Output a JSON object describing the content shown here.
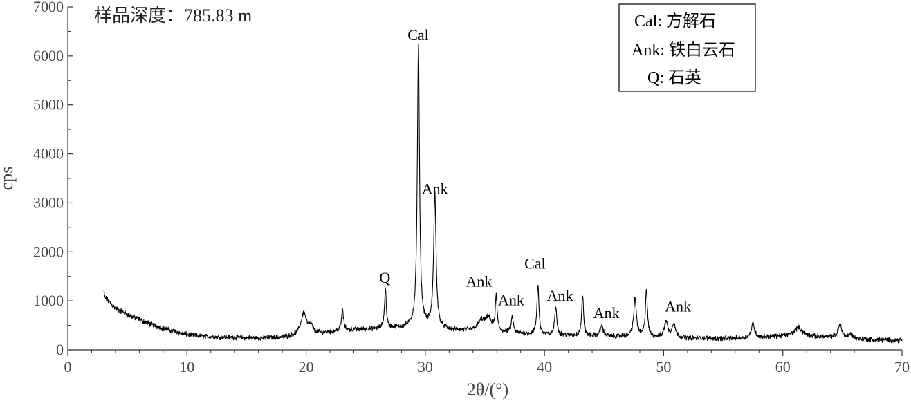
{
  "chart_data": {
    "type": "line",
    "sample_label": "样品深度：785.83 m",
    "xlabel": "2θ/(°)",
    "ylabel": "cps",
    "xlim": [
      0,
      70
    ],
    "ylim": [
      0,
      7000
    ],
    "x_ticks": [
      "0",
      "10",
      "20",
      "30",
      "40",
      "50",
      "60",
      "70"
    ],
    "y_ticks": [
      "0",
      "1000",
      "2000",
      "3000",
      "4000",
      "5000",
      "6000",
      "7000"
    ],
    "grid": false,
    "legend": {
      "position": "top-right",
      "entries": [
        "Cal: 方解石",
        "Ank: 铁白云石",
        "Q: 石英"
      ]
    },
    "series": [
      {
        "baseline": [
          [
            3.0,
            1100
          ],
          [
            4,
            850
          ],
          [
            5,
            720
          ],
          [
            6,
            620
          ],
          [
            7,
            520
          ],
          [
            8,
            440
          ],
          [
            9,
            370
          ],
          [
            10,
            310
          ],
          [
            11,
            280
          ],
          [
            12,
            265
          ],
          [
            14,
            250
          ],
          [
            16,
            240
          ],
          [
            18,
            250
          ],
          [
            19,
            280
          ],
          [
            21,
            330
          ],
          [
            23,
            390
          ],
          [
            25,
            420
          ],
          [
            26,
            430
          ],
          [
            28,
            450
          ],
          [
            30,
            470
          ],
          [
            32,
            400
          ],
          [
            34,
            380
          ],
          [
            36,
            360
          ],
          [
            38,
            330
          ],
          [
            40,
            300
          ],
          [
            42,
            290
          ],
          [
            44,
            280
          ],
          [
            46,
            270
          ],
          [
            48,
            265
          ],
          [
            50,
            255
          ],
          [
            52,
            240
          ],
          [
            55,
            230
          ],
          [
            58,
            250
          ],
          [
            60,
            280
          ],
          [
            62,
            270
          ],
          [
            64,
            250
          ],
          [
            66,
            220
          ],
          [
            68,
            200
          ],
          [
            70,
            200
          ]
        ],
        "peaks": [
          {
            "x": 19.8,
            "height": 450,
            "width": 0.28
          },
          {
            "x": 20.4,
            "height": 150,
            "width": 0.2
          },
          {
            "x": 23.05,
            "height": 420,
            "width": 0.1
          },
          {
            "x": 26.65,
            "height": 820,
            "width": 0.09
          },
          {
            "x": 29.42,
            "height": 5750,
            "width": 0.11
          },
          {
            "x": 30.8,
            "height": 2750,
            "width": 0.12
          },
          {
            "x": 34.7,
            "height": 200,
            "width": 0.35
          },
          {
            "x": 35.3,
            "height": 250,
            "width": 0.3
          },
          {
            "x": 35.95,
            "height": 700,
            "width": 0.09
          },
          {
            "x": 37.3,
            "height": 330,
            "width": 0.1
          },
          {
            "x": 39.45,
            "height": 1020,
            "width": 0.1
          },
          {
            "x": 40.95,
            "height": 580,
            "width": 0.11
          },
          {
            "x": 43.2,
            "height": 800,
            "width": 0.1
          },
          {
            "x": 44.8,
            "height": 220,
            "width": 0.14
          },
          {
            "x": 47.6,
            "height": 760,
            "width": 0.14
          },
          {
            "x": 48.55,
            "height": 960,
            "width": 0.1
          },
          {
            "x": 50.2,
            "height": 330,
            "width": 0.16
          },
          {
            "x": 50.85,
            "height": 300,
            "width": 0.16
          },
          {
            "x": 57.5,
            "height": 290,
            "width": 0.16
          },
          {
            "x": 61.3,
            "height": 180,
            "width": 0.4
          },
          {
            "x": 64.8,
            "height": 270,
            "width": 0.2
          },
          {
            "x": 65.7,
            "height": 90,
            "width": 0.2
          }
        ],
        "noise_amplitude": 75
      }
    ],
    "annotations": [
      {
        "text": "Cal",
        "x": 29.4,
        "y": 6320
      },
      {
        "text": "Ank",
        "x": 30.8,
        "y": 3180
      },
      {
        "text": "Q",
        "x": 26.6,
        "y": 1370
      },
      {
        "text": "Ank",
        "x": 34.5,
        "y": 1290
      },
      {
        "text": "Ank",
        "x": 37.2,
        "y": 910
      },
      {
        "text": "Cal",
        "x": 39.2,
        "y": 1660
      },
      {
        "text": "Ank",
        "x": 41.3,
        "y": 1000
      },
      {
        "text": "Ank",
        "x": 45.2,
        "y": 650
      },
      {
        "text": "Ank",
        "x": 51.2,
        "y": 780
      }
    ]
  }
}
